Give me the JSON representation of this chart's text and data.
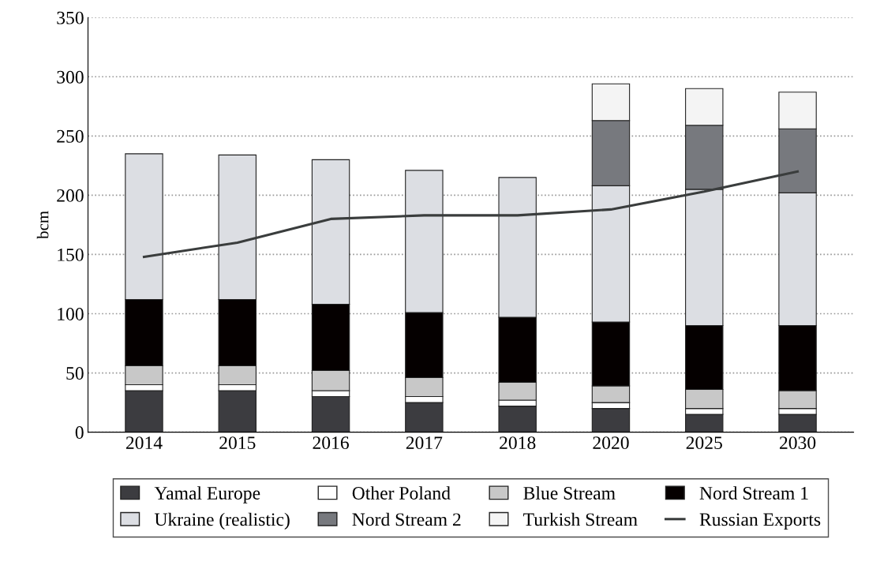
{
  "chart_data": {
    "type": "bar",
    "stacked": true,
    "ylabel": "bcm",
    "categories": [
      "2014",
      "2015",
      "2016",
      "2017",
      "2018",
      "2020",
      "2025",
      "2030"
    ],
    "series": [
      {
        "name": "Yamal Europe",
        "color": "#3c3c40",
        "values": [
          35,
          35,
          30,
          25,
          22,
          20,
          15,
          15
        ]
      },
      {
        "name": "Other Poland",
        "color": "#ffffff",
        "values": [
          5,
          5,
          5,
          5,
          5,
          5,
          5,
          5
        ]
      },
      {
        "name": "Blue Stream",
        "color": "#c8c8c8",
        "values": [
          16,
          16,
          17,
          16,
          15,
          14,
          16,
          15
        ]
      },
      {
        "name": "Nord Stream 1",
        "color": "#050000",
        "values": [
          56,
          56,
          56,
          55,
          55,
          54,
          54,
          55
        ]
      },
      {
        "name": "Ukraine (realistic)",
        "color": "#dcdee3",
        "values": [
          123,
          122,
          122,
          120,
          118,
          115,
          115,
          112
        ]
      },
      {
        "name": "Nord Stream 2",
        "color": "#77797e",
        "values": [
          0,
          0,
          0,
          0,
          0,
          55,
          54,
          54
        ]
      },
      {
        "name": "Turkish Stream",
        "color": "#f4f4f4",
        "values": [
          0,
          0,
          0,
          0,
          0,
          31,
          31,
          31
        ]
      },
      {
        "name": "Russian Exports",
        "type": "line",
        "color": "#3a3d3d",
        "values": [
          148,
          160,
          180,
          183,
          183,
          188,
          203,
          220
        ]
      }
    ],
    "ylim": [
      0,
      350
    ],
    "yticks": [
      0,
      50,
      100,
      150,
      200,
      250,
      300,
      350
    ],
    "grid": "y",
    "legend": "bottom"
  }
}
